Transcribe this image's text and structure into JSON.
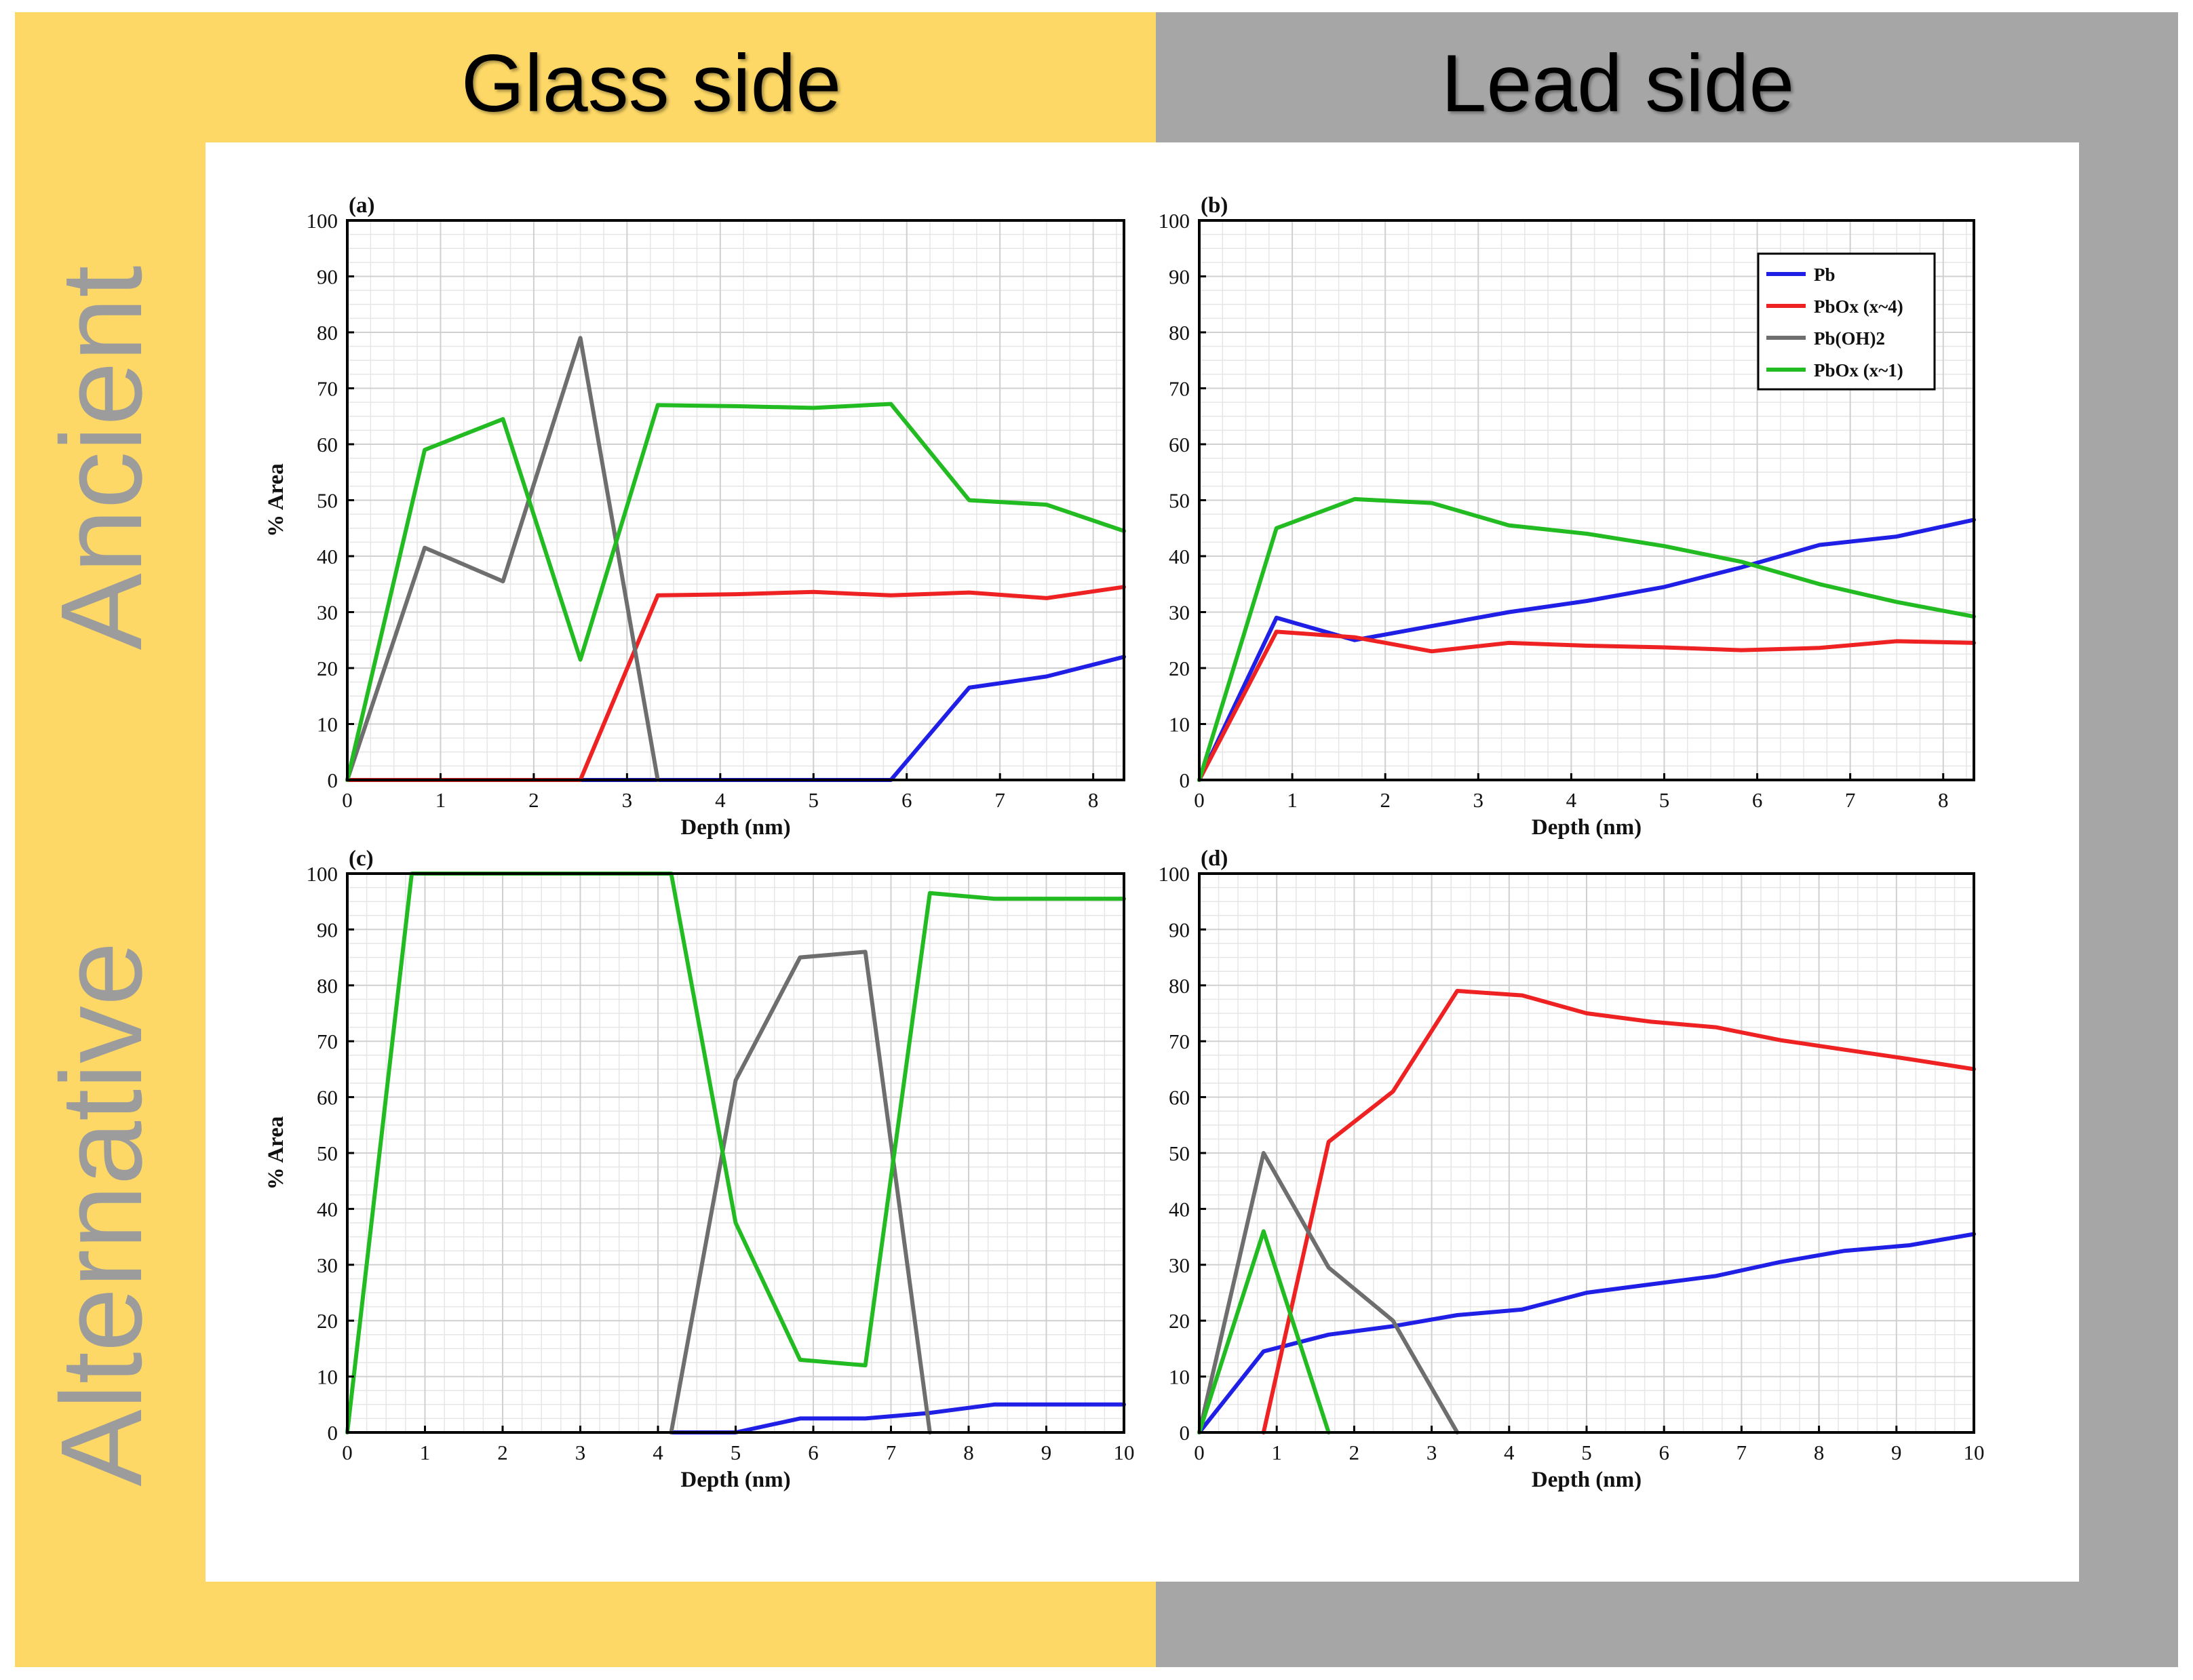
{
  "headers": {
    "glass_side": "Glass side",
    "lead_side": "Lead side",
    "ancient": "Ancient",
    "alternative": "Alternative"
  },
  "colors": {
    "glass_bg": "#FDD866",
    "lead_bg": "#A6A6A6",
    "row_label": "#9C9C9C",
    "Pb": "#1F1FE6",
    "PbOx_4": "#EE2222",
    "PbOH2": "#6E6E6E",
    "PbOx_1": "#22BB22"
  },
  "legend": [
    {
      "key": "Pb",
      "text": "Pb"
    },
    {
      "key": "PbOx_4",
      "text": "PbOx (x~4)"
    },
    {
      "key": "PbOH2",
      "text": "Pb(OH)2"
    },
    {
      "key": "PbOx_1",
      "text": "PbOx (x~1)"
    }
  ],
  "chart_data": [
    {
      "id": "a",
      "label": "(a)",
      "type": "line",
      "xlabel": "Depth (nm)",
      "ylabel": "% Area",
      "xlim": [
        0,
        8.33
      ],
      "ylim": [
        0,
        100
      ],
      "xticks": [
        0,
        1,
        2,
        3,
        4,
        5,
        6,
        7,
        8
      ],
      "yticks": [
        0,
        10,
        20,
        30,
        40,
        50,
        60,
        70,
        80,
        90,
        100
      ],
      "grid": true,
      "legend": false,
      "series": [
        {
          "key": "Pb",
          "name": "Pb",
          "x": [
            2.5,
            3.33,
            4.17,
            5.0,
            5.83,
            6.67,
            7.5,
            8.33
          ],
          "y": [
            0,
            0,
            0,
            0,
            0,
            16.5,
            18.5,
            22
          ]
        },
        {
          "key": "PbOx_4",
          "name": "PbOx (x~4)",
          "x": [
            0,
            0.83,
            1.67,
            2.5,
            3.33,
            4.17,
            5.0,
            5.83,
            6.67,
            7.5,
            8.33
          ],
          "y": [
            0,
            0,
            0,
            0,
            33,
            33.2,
            33.6,
            33,
            33.5,
            32.5,
            34.5
          ]
        },
        {
          "key": "PbOH2",
          "name": "Pb(OH)2",
          "x": [
            0,
            0.83,
            1.67,
            2.5,
            3.33
          ],
          "y": [
            0,
            41.5,
            35.5,
            79,
            0
          ]
        },
        {
          "key": "PbOx_1",
          "name": "PbOx (x~1)",
          "x": [
            0,
            0.83,
            1.67,
            2.5,
            3.33,
            4.17,
            5.0,
            5.83,
            6.67,
            7.5,
            8.33
          ],
          "y": [
            0,
            59,
            64.5,
            21.5,
            67,
            66.8,
            66.5,
            67.2,
            50,
            49.2,
            44.5
          ]
        }
      ]
    },
    {
      "id": "b",
      "label": "(b)",
      "type": "line",
      "xlabel": "Depth (nm)",
      "ylabel": "",
      "xlim": [
        0,
        8.33
      ],
      "ylim": [
        0,
        100
      ],
      "xticks": [
        0,
        1,
        2,
        3,
        4,
        5,
        6,
        7,
        8
      ],
      "yticks": [
        0,
        10,
        20,
        30,
        40,
        50,
        60,
        70,
        80,
        90,
        100
      ],
      "grid": true,
      "legend": true,
      "series": [
        {
          "key": "Pb",
          "name": "Pb",
          "x": [
            0,
            0.83,
            1.67,
            2.5,
            3.33,
            4.17,
            5.0,
            5.83,
            6.67,
            7.5,
            8.33
          ],
          "y": [
            0,
            29,
            25,
            27.5,
            30,
            32,
            34.5,
            38,
            42,
            43.5,
            46.5
          ]
        },
        {
          "key": "PbOx_4",
          "name": "PbOx (x~4)",
          "x": [
            0,
            0.83,
            1.67,
            2.5,
            3.33,
            4.17,
            5.0,
            5.83,
            6.67,
            7.5,
            8.33
          ],
          "y": [
            0,
            26.5,
            25.5,
            23,
            24.5,
            24,
            23.7,
            23.2,
            23.6,
            24.8,
            24.5
          ]
        },
        {
          "key": "PbOx_1",
          "name": "PbOx (x~1)",
          "x": [
            0,
            0.83,
            1.67,
            2.5,
            3.33,
            4.17,
            5.0,
            5.83,
            6.67,
            7.5,
            8.33
          ],
          "y": [
            0,
            45,
            50.2,
            49.5,
            45.5,
            44,
            41.8,
            39,
            35,
            31.8,
            29.2
          ]
        }
      ]
    },
    {
      "id": "c",
      "label": "(c)",
      "type": "line",
      "xlabel": "Depth (nm)",
      "ylabel": "% Area",
      "xlim": [
        0,
        10
      ],
      "ylim": [
        0,
        100
      ],
      "xticks": [
        0,
        1,
        2,
        3,
        4,
        5,
        6,
        7,
        8,
        9,
        10
      ],
      "yticks": [
        0,
        10,
        20,
        30,
        40,
        50,
        60,
        70,
        80,
        90,
        100
      ],
      "grid": true,
      "legend": false,
      "series": [
        {
          "key": "Pb",
          "name": "Pb",
          "x": [
            4.17,
            5.0,
            5.83,
            6.67,
            7.5,
            8.33,
            9.17,
            10
          ],
          "y": [
            0,
            0,
            2.5,
            2.5,
            3.5,
            5,
            5,
            5
          ]
        },
        {
          "key": "PbOH2",
          "name": "Pb(OH)2",
          "x": [
            4.17,
            5.0,
            5.83,
            6.67,
            7.5
          ],
          "y": [
            0,
            63,
            85,
            86,
            0
          ]
        },
        {
          "key": "PbOx_1",
          "name": "PbOx (x~1)",
          "x": [
            0,
            0.83,
            1.67,
            2.5,
            3.33,
            4.17,
            5.0,
            5.83,
            6.67,
            7.5,
            8.33,
            9.17,
            10
          ],
          "y": [
            0,
            100,
            100,
            100,
            100,
            100,
            37.5,
            13,
            12,
            96.5,
            95.5,
            95.5,
            95.5
          ]
        }
      ]
    },
    {
      "id": "d",
      "label": "(d)",
      "type": "line",
      "xlabel": "Depth (nm)",
      "ylabel": "",
      "xlim": [
        0,
        10
      ],
      "ylim": [
        0,
        100
      ],
      "xticks": [
        0,
        1,
        2,
        3,
        4,
        5,
        6,
        7,
        8,
        9,
        10
      ],
      "yticks": [
        0,
        10,
        20,
        30,
        40,
        50,
        60,
        70,
        80,
        90,
        100
      ],
      "grid": true,
      "legend": false,
      "series": [
        {
          "key": "Pb",
          "name": "Pb",
          "x": [
            0,
            0.83,
            1.67,
            2.5,
            3.33,
            4.17,
            5.0,
            5.83,
            6.67,
            7.5,
            8.33,
            9.17,
            10
          ],
          "y": [
            0,
            14.5,
            17.5,
            19,
            21,
            22,
            25,
            26.5,
            28,
            30.5,
            32.5,
            33.5,
            35.5
          ]
        },
        {
          "key": "PbOx_4",
          "name": "PbOx (x~4)",
          "x": [
            0.83,
            1.67,
            2.5,
            3.33,
            4.17,
            5.0,
            5.83,
            6.67,
            7.5,
            8.33,
            9.17,
            10
          ],
          "y": [
            0,
            52,
            61,
            79,
            78.2,
            75,
            73.5,
            72.5,
            70.2,
            68.5,
            66.8,
            65
          ]
        },
        {
          "key": "PbOH2",
          "name": "Pb(OH)2",
          "x": [
            0,
            0.83,
            1.67,
            2.5,
            3.33
          ],
          "y": [
            0,
            50,
            29.5,
            20,
            0
          ]
        },
        {
          "key": "PbOx_1",
          "name": "PbOx (x~1)",
          "x": [
            0,
            0.83,
            1.67
          ],
          "y": [
            0,
            36,
            0
          ]
        }
      ]
    }
  ]
}
